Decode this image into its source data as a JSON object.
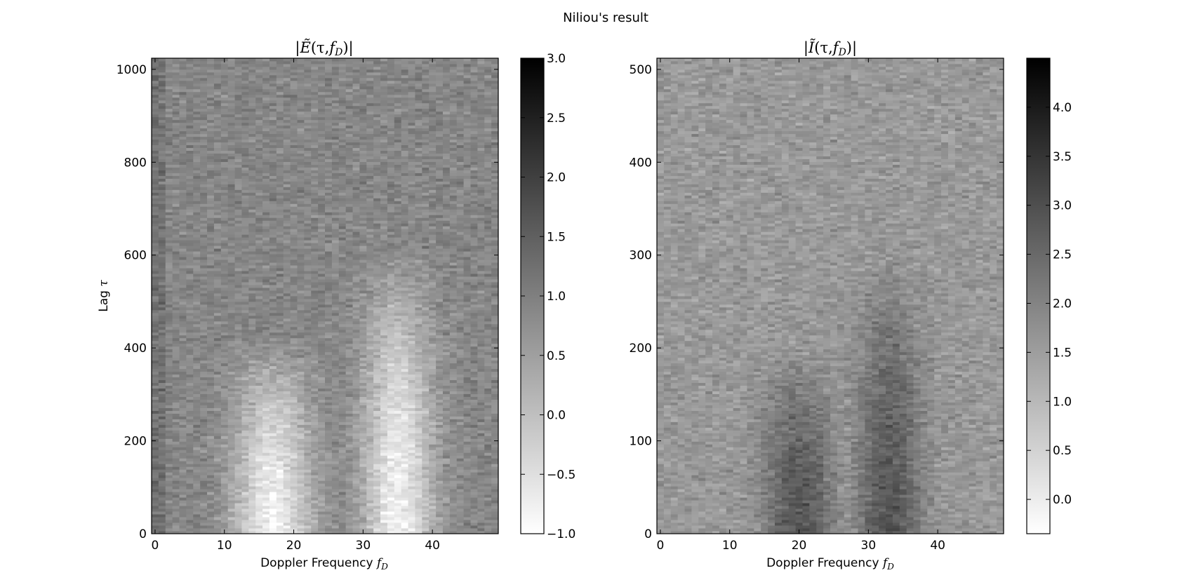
{
  "figure": {
    "suptitle": "Niliou's result"
  },
  "chart_data": [
    {
      "type": "heatmap",
      "title": "|Ẽ(τ,f_D)|",
      "title_parts": {
        "pre": "|",
        "sym": "Ẽ",
        "args": "(τ,",
        "f": "f",
        "sub": "D",
        "post": ")|"
      },
      "xlabel": "Doppler Frequency",
      "xlabel_symbol": "f",
      "xlabel_sub": "D",
      "ylabel": "Lag",
      "ylabel_symbol": "τ",
      "x_range": [
        -0.5,
        49.5
      ],
      "y_range": [
        0,
        1024
      ],
      "xticks": [
        0,
        10,
        20,
        30,
        40
      ],
      "yticks": [
        0,
        200,
        400,
        600,
        800,
        1000
      ],
      "colorbar": {
        "range": [
          -1.0,
          3.0
        ],
        "ticks": [
          -1.0,
          -0.5,
          0.0,
          0.5,
          1.0,
          1.5,
          2.0,
          2.5,
          3.0
        ],
        "tick_labels": [
          "−1.0",
          "−0.5",
          "0.0",
          "0.5",
          "1.0",
          "1.5",
          "2.0",
          "2.5",
          "3.0"
        ],
        "colormap": "gray_r"
      },
      "bright_lobes": [
        {
          "f_center": 17,
          "f_width": 5.5,
          "lag_extent": 430
        },
        {
          "f_center": 35,
          "f_width": 5,
          "lag_extent": 620
        }
      ],
      "background_level": 0.9,
      "lobe_level": -0.8
    },
    {
      "type": "heatmap",
      "title": "|Ĩ(τ,f_D)|",
      "title_parts": {
        "pre": "|",
        "sym": "Ĩ",
        "args": "(τ,",
        "f": "f",
        "sub": "D",
        "post": ")|"
      },
      "xlabel": "Doppler Frequency",
      "xlabel_symbol": "f",
      "xlabel_sub": "D",
      "ylabel": "",
      "ylabel_symbol": "",
      "x_range": [
        -0.5,
        49.5
      ],
      "y_range": [
        0,
        512
      ],
      "xticks": [
        0,
        10,
        20,
        30,
        40
      ],
      "yticks": [
        0,
        100,
        200,
        300,
        400,
        500
      ],
      "colorbar": {
        "range": [
          -0.35,
          4.5
        ],
        "ticks": [
          0.0,
          0.5,
          1.0,
          1.5,
          2.0,
          2.5,
          3.0,
          3.5,
          4.0
        ],
        "tick_labels": [
          "0.0",
          "0.5",
          "1.0",
          "1.5",
          "2.0",
          "2.5",
          "3.0",
          "3.5",
          "4.0"
        ],
        "colormap": "gray_r"
      },
      "dark_lobes": [
        {
          "f_center": 20,
          "f_width": 5,
          "lag_extent": 200
        },
        {
          "f_center": 33,
          "f_width": 4.5,
          "lag_extent": 300
        }
      ],
      "background_level": 1.6,
      "lobe_level": 2.9
    }
  ]
}
